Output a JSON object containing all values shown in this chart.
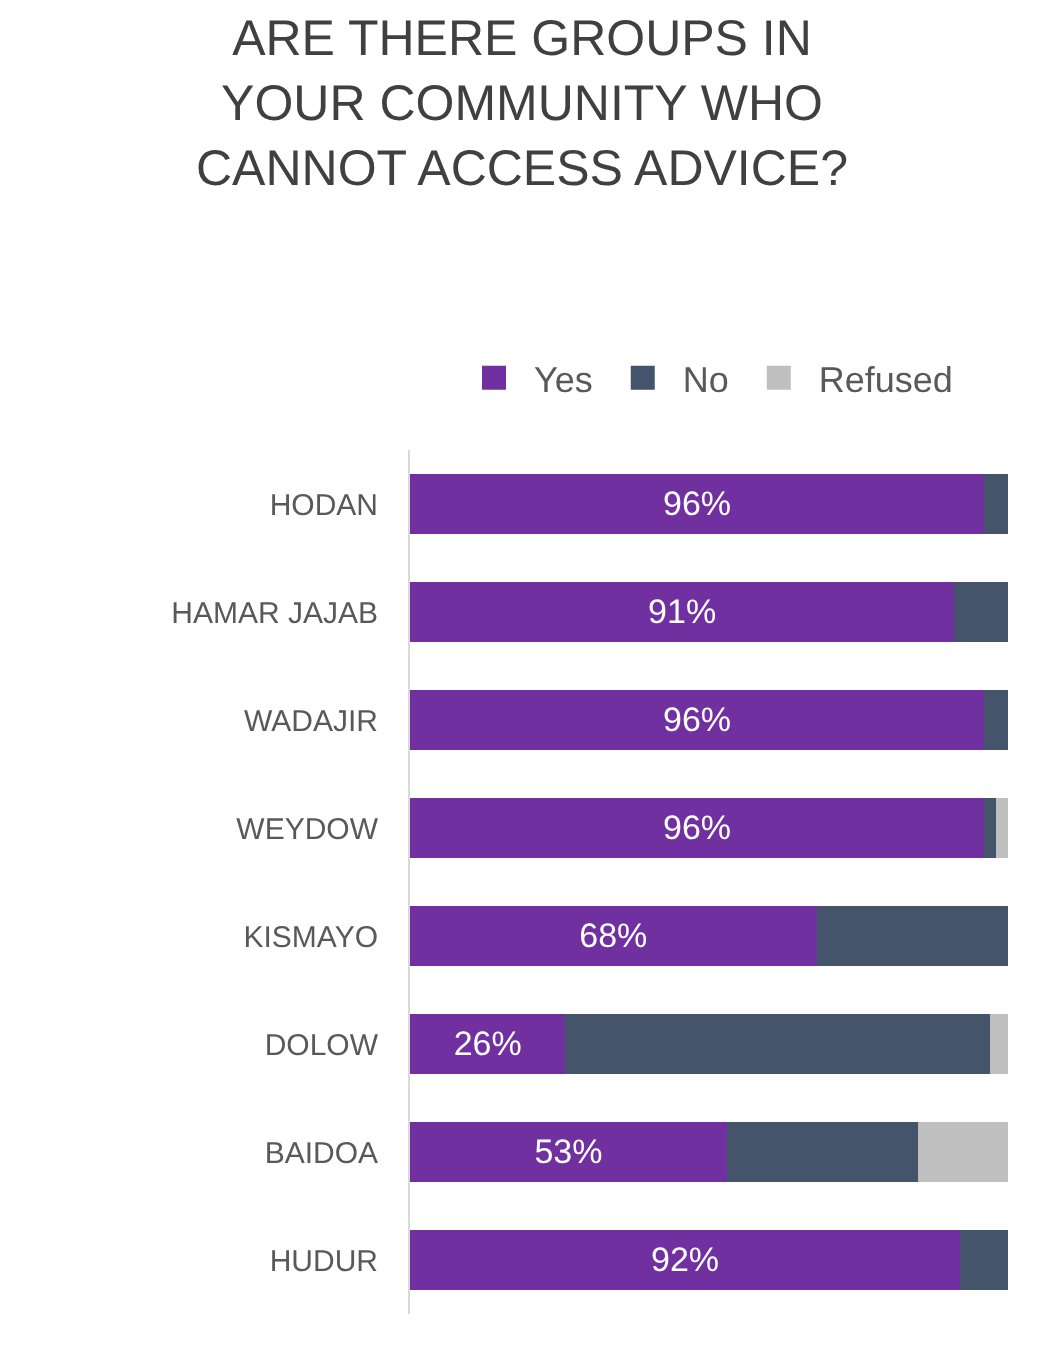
{
  "chart_data": {
    "type": "bar",
    "orientation": "horizontal",
    "stacked": true,
    "title": "ARE THERE GROUPS IN YOUR COMMUNITY WHO CANNOT ACCESS ADVICE?",
    "categories": [
      "HODAN",
      "HAMAR JAJAB",
      "WADAJIR",
      "WEYDOW",
      "KISMAYO",
      "DOLOW",
      "BAIDOA",
      "HUDUR"
    ],
    "series": [
      {
        "name": "Yes",
        "color": "#7030a0",
        "values": [
          96,
          91,
          96,
          96,
          68,
          26,
          53,
          92
        ],
        "value_labels": [
          "96%",
          "91%",
          "96%",
          "96%",
          "68%",
          "26%",
          "53%",
          "92%"
        ]
      },
      {
        "name": "No",
        "color": "#44546a",
        "values": [
          4,
          9,
          4,
          2,
          32,
          71,
          32,
          8
        ]
      },
      {
        "name": "Refused",
        "color": "#bfbfbf",
        "values": [
          0,
          0,
          0,
          2,
          0,
          3,
          15,
          0
        ]
      }
    ],
    "xlim": [
      0,
      100
    ],
    "tick_labels": "y",
    "legend": "top"
  }
}
